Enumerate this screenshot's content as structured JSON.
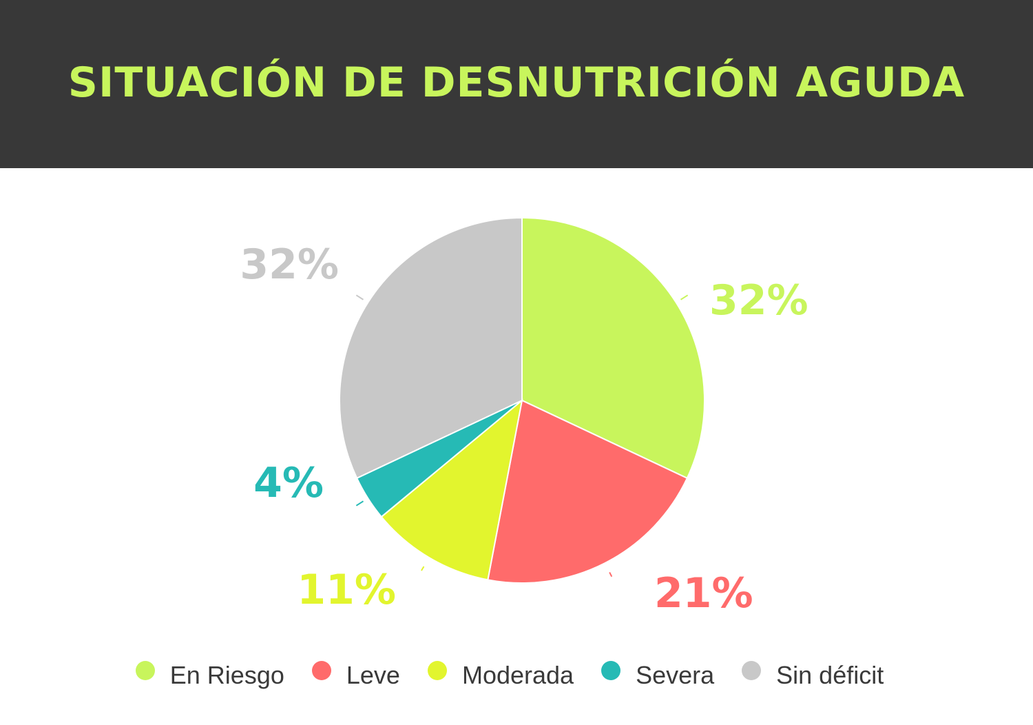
{
  "header": {
    "title": "SITUACIÓN DE DESNUTRICIÓN AGUDA",
    "title_color": "#c8f55c",
    "background": "#383838"
  },
  "chart_data": {
    "type": "pie",
    "title": "SITUACIÓN DE DESNUTRICIÓN AGUDA",
    "start_angle": "12 o'clock, clockwise",
    "legend_position": "bottom",
    "slices": [
      {
        "label": "En Riesgo",
        "value": 32,
        "display": "32%",
        "color": "#c8f55c"
      },
      {
        "label": "Leve",
        "value": 21,
        "display": "21%",
        "color": "#ff6b6b"
      },
      {
        "label": "Moderada",
        "value": 11,
        "display": "11%",
        "color": "#e2f52e"
      },
      {
        "label": "Severa",
        "value": 4,
        "display": "4%",
        "color": "#26bab5"
      },
      {
        "label": "Sin déficit",
        "value": 32,
        "display": "32%",
        "color": "#c8c8c8"
      }
    ]
  }
}
